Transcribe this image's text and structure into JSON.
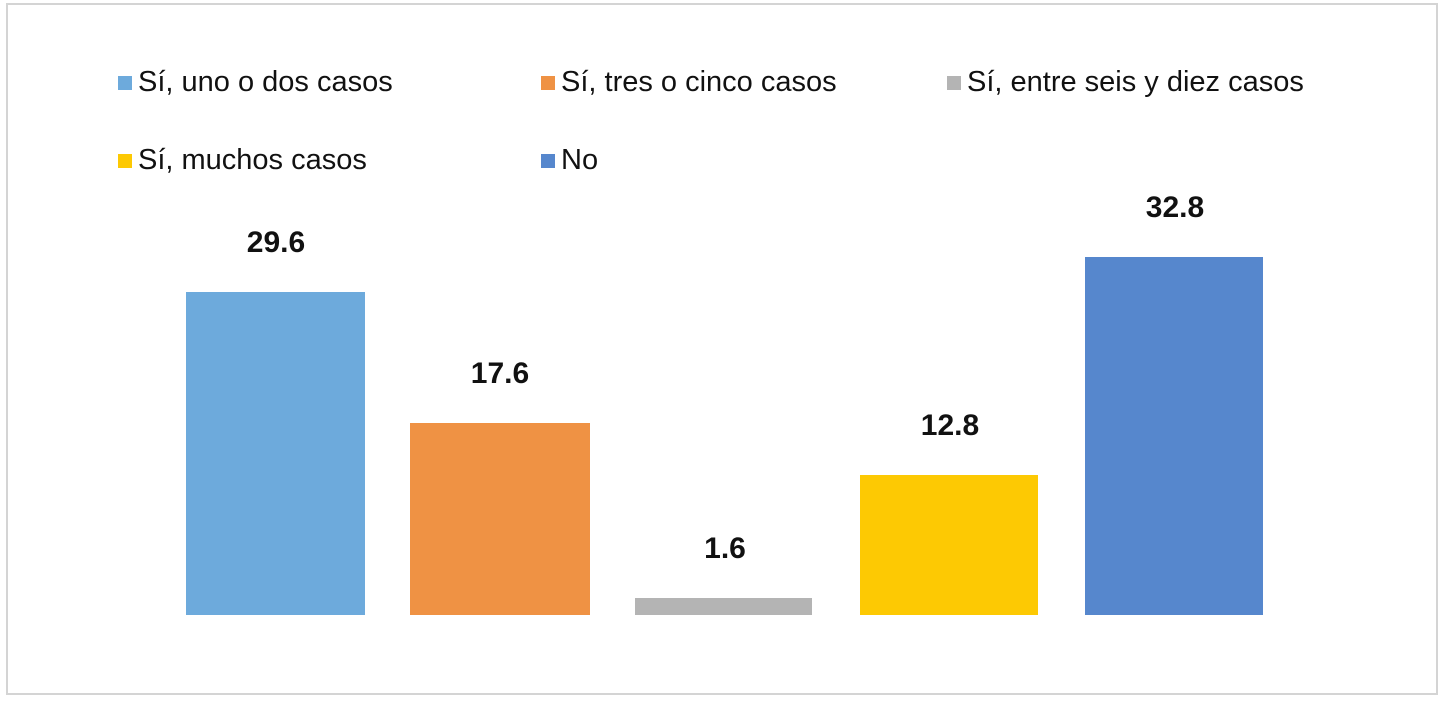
{
  "chart_data": {
    "type": "bar",
    "title": "",
    "xlabel": "",
    "ylabel": "",
    "categories": [
      "Sí, uno o dos casos",
      "Sí, tres o cinco casos",
      "Sí, entre seis y diez casos",
      "Sí, muchos casos",
      "No"
    ],
    "values": [
      29.6,
      17.6,
      1.6,
      12.8,
      32.8
    ],
    "value_labels": [
      "29.6",
      "17.6",
      "1.6",
      "12.8",
      "32.8"
    ],
    "colors": [
      "#6DAADC",
      "#EF9244",
      "#B4B4B4",
      "#FDC903",
      "#5687CD"
    ],
    "ylim": [
      0,
      32.8
    ],
    "grid": false,
    "axes_visible": false,
    "legend_position": "top",
    "data_labels": true
  },
  "legend": {
    "items": [
      {
        "label": "Sí, uno o dos casos",
        "color": "#6DAADC"
      },
      {
        "label": "Sí, tres o cinco casos",
        "color": "#EF9244"
      },
      {
        "label": "Sí, entre seis y diez casos",
        "color": "#B4B4B4"
      },
      {
        "label": "Sí, muchos casos",
        "color": "#FDC903"
      },
      {
        "label": "No",
        "color": "#5687CD"
      }
    ]
  }
}
